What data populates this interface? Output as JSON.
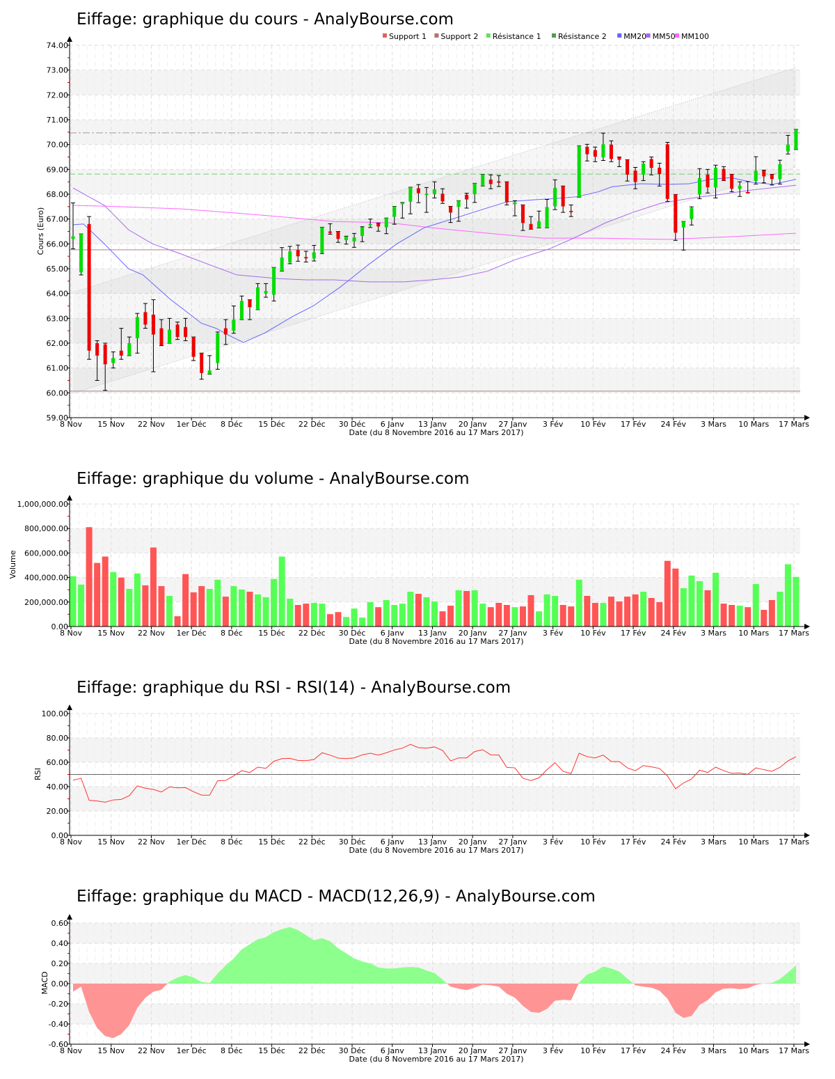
{
  "x_labels": [
    "8 Nov",
    "15 Nov",
    "22 Nov",
    "1er Déc",
    "8 Déc",
    "15 Déc",
    "22 Déc",
    "30 Déc",
    "6 Janv",
    "13 Janv",
    "20 Janv",
    "27 Janv",
    "3 Fév",
    "10 Fév",
    "17 Fév",
    "24 Fév",
    "3 Mars",
    "10 Mars",
    "17 Mars"
  ],
  "x_axis_title": "Date (du 8 Novembre 2016 au 17 Mars 2017)",
  "colors": {
    "up": "#00dd00",
    "down": "#ee0000",
    "vol_up": "#55ff55",
    "vol_down": "#ff5555",
    "rsi": "#ff3333",
    "macd_pos": "#8cff8c",
    "macd_neg": "#ff9494",
    "mm20": "#6666ff",
    "mm50": "#aa66ee",
    "mm100": "#ff66ff",
    "support1": "#e06060",
    "support2": "#b87070",
    "resistance1": "#66dd66",
    "resistance2": "#559955"
  },
  "chart_data": [
    {
      "type": "candlestick",
      "title": "Eiffage: graphique du cours - AnalyBourse.com",
      "ylabel": "Cours (Euro)",
      "ylim": [
        59,
        74
      ],
      "yticks": [
        "74.00",
        "73.00",
        "72.00",
        "71.00",
        "70.00",
        "69.00",
        "68.00",
        "67.00",
        "66.00",
        "65.00",
        "64.00",
        "63.00",
        "62.00",
        "61.00",
        "60.00",
        "59.00"
      ],
      "legend": [
        {
          "label": "Support 1",
          "color": "#e06060"
        },
        {
          "label": "Support 2",
          "color": "#b87070"
        },
        {
          "label": "Résistance 1",
          "color": "#66dd66"
        },
        {
          "label": "Résistance 2",
          "color": "#559955"
        },
        {
          "label": "MM20",
          "color": "#6666ff"
        },
        {
          "label": "MM50",
          "color": "#aa66ee"
        },
        {
          "label": "MM100",
          "color": "#ff66ff"
        }
      ],
      "levels": {
        "support1": 65.76,
        "support2": 60.07,
        "resistance1": 68.81,
        "resistance2": 70.47
      },
      "channel": {
        "upper": [
          [
            0,
            64.05
          ],
          [
            90,
            73.1
          ]
        ],
        "lower": [
          [
            0,
            59.98
          ],
          [
            90,
            69.1
          ]
        ]
      },
      "ohlc": [
        [
          66.2,
          67.65,
          65.8,
          66.3
        ],
        [
          64.85,
          66.4,
          64.75,
          66.4
        ],
        [
          66.8,
          67.1,
          61.35,
          61.7
        ],
        [
          62.0,
          62.1,
          60.5,
          61.5
        ],
        [
          61.95,
          62.0,
          60.1,
          61.15
        ],
        [
          61.2,
          61.65,
          61.0,
          61.4
        ],
        [
          61.7,
          62.6,
          61.35,
          61.5
        ],
        [
          61.5,
          62.25,
          61.5,
          62.0
        ],
        [
          62.2,
          63.2,
          61.6,
          63.05
        ],
        [
          63.25,
          63.6,
          62.6,
          62.75
        ],
        [
          63.15,
          63.75,
          60.85,
          62.35
        ],
        [
          62.6,
          62.95,
          61.9,
          61.9
        ],
        [
          62.0,
          63.0,
          62.0,
          62.55
        ],
        [
          62.75,
          62.85,
          62.15,
          62.25
        ],
        [
          62.65,
          63.0,
          62.1,
          62.25
        ],
        [
          62.25,
          62.25,
          61.3,
          61.45
        ],
        [
          61.6,
          61.6,
          60.55,
          60.8
        ],
        [
          60.75,
          61.5,
          60.75,
          60.9
        ],
        [
          61.2,
          62.45,
          60.95,
          62.4
        ],
        [
          62.6,
          62.95,
          61.95,
          62.35
        ],
        [
          62.5,
          63.5,
          62.4,
          62.95
        ],
        [
          62.95,
          63.9,
          62.95,
          63.7
        ],
        [
          63.75,
          63.75,
          62.95,
          63.45
        ],
        [
          63.35,
          64.4,
          63.35,
          64.25
        ],
        [
          64.0,
          64.4,
          63.85,
          64.1
        ],
        [
          63.95,
          65.05,
          63.7,
          65.05
        ],
        [
          64.9,
          65.85,
          64.9,
          65.45
        ],
        [
          65.25,
          65.9,
          65.2,
          65.7
        ],
        [
          65.75,
          65.95,
          65.3,
          65.5
        ],
        [
          65.47,
          65.7,
          65.27,
          65.42
        ],
        [
          65.41,
          65.94,
          65.31,
          65.66
        ],
        [
          65.64,
          66.67,
          65.61,
          66.67
        ],
        [
          66.5,
          66.81,
          66.39,
          66.44
        ],
        [
          66.5,
          66.5,
          66.06,
          66.2
        ],
        [
          66.15,
          66.31,
          65.99,
          66.3
        ],
        [
          66.1,
          66.42,
          65.86,
          66.26
        ],
        [
          66.32,
          66.69,
          66.09,
          66.67
        ],
        [
          66.75,
          67.0,
          66.66,
          66.8
        ],
        [
          66.84,
          66.84,
          66.51,
          66.7
        ],
        [
          66.67,
          67.04,
          66.41,
          67.04
        ],
        [
          67.09,
          67.51,
          66.79,
          67.51
        ],
        [
          67.6,
          67.67,
          67.04,
          67.67
        ],
        [
          67.7,
          68.28,
          67.21,
          68.28
        ],
        [
          68.24,
          68.39,
          67.66,
          68.04
        ],
        [
          67.98,
          68.27,
          67.27,
          68.02
        ],
        [
          68.0,
          68.5,
          67.85,
          68.2
        ],
        [
          68.02,
          68.22,
          67.63,
          67.71
        ],
        [
          67.51,
          67.51,
          66.86,
          67.26
        ],
        [
          67.49,
          67.74,
          66.91,
          67.74
        ],
        [
          67.98,
          68.04,
          67.44,
          67.79
        ],
        [
          68.0,
          68.44,
          67.67,
          68.44
        ],
        [
          68.33,
          68.8,
          68.33,
          68.8
        ],
        [
          68.59,
          68.78,
          68.22,
          68.41
        ],
        [
          68.52,
          68.75,
          68.31,
          68.48
        ],
        [
          68.5,
          68.5,
          67.57,
          67.67
        ],
        [
          67.6,
          67.74,
          67.13,
          67.67
        ],
        [
          67.57,
          67.57,
          66.54,
          66.84
        ],
        [
          66.8,
          67.1,
          66.59,
          66.59
        ],
        [
          66.64,
          67.32,
          66.64,
          66.91
        ],
        [
          66.65,
          67.79,
          66.65,
          67.48
        ],
        [
          67.51,
          68.58,
          67.38,
          68.26
        ],
        [
          68.33,
          68.33,
          67.27,
          67.51
        ],
        [
          67.33,
          67.57,
          67.1,
          67.29
        ],
        [
          67.88,
          69.95,
          67.88,
          69.95
        ],
        [
          69.91,
          70.01,
          69.34,
          69.61
        ],
        [
          69.78,
          69.9,
          69.31,
          69.51
        ],
        [
          69.49,
          70.46,
          69.36,
          70.01
        ],
        [
          70.0,
          70.15,
          69.31,
          69.42
        ],
        [
          69.5,
          69.5,
          69.11,
          69.39
        ],
        [
          69.39,
          69.39,
          68.53,
          68.79
        ],
        [
          68.95,
          69.08,
          68.22,
          68.49
        ],
        [
          68.79,
          69.31,
          68.55,
          69.23
        ],
        [
          69.42,
          69.5,
          68.78,
          69.06
        ],
        [
          69.07,
          69.25,
          68.33,
          68.81
        ],
        [
          70.01,
          70.09,
          67.71,
          67.81
        ],
        [
          67.99,
          67.99,
          66.14,
          66.45
        ],
        [
          66.66,
          66.9,
          65.75,
          66.9
        ],
        [
          67.0,
          67.49,
          66.76,
          67.44
        ],
        [
          67.99,
          69.03,
          67.82,
          68.65
        ],
        [
          68.79,
          69.0,
          68.05,
          68.28
        ],
        [
          68.27,
          69.17,
          67.85,
          69.07
        ],
        [
          69.02,
          69.11,
          68.55,
          68.55
        ],
        [
          68.8,
          68.8,
          68.1,
          68.22
        ],
        [
          68.22,
          68.5,
          67.91,
          68.34
        ],
        [
          68.09,
          68.51,
          68.07,
          68.07
        ],
        [
          68.53,
          69.51,
          68.41,
          68.95
        ],
        [
          68.95,
          68.97,
          68.46,
          68.72
        ],
        [
          68.8,
          68.8,
          68.37,
          68.61
        ],
        [
          68.61,
          69.37,
          68.41,
          69.21
        ],
        [
          69.72,
          70.37,
          69.62,
          70.0
        ],
        [
          69.8,
          70.61,
          69.8,
          70.61
        ]
      ],
      "mm20": [
        [
          0,
          66.77
        ],
        [
          1.3,
          66.8
        ],
        [
          3.9,
          66.0
        ],
        [
          6.9,
          65.0
        ],
        [
          8.7,
          64.75
        ],
        [
          12.1,
          63.77
        ],
        [
          16.0,
          62.8
        ],
        [
          17.8,
          62.6
        ],
        [
          19.5,
          62.3
        ],
        [
          21.2,
          62.03
        ],
        [
          23.8,
          62.4
        ],
        [
          27.3,
          63.07
        ],
        [
          29.9,
          63.5
        ],
        [
          33.3,
          64.27
        ],
        [
          36.8,
          65.17
        ],
        [
          40.3,
          66.0
        ],
        [
          43.7,
          66.65
        ],
        [
          47.2,
          67.0
        ],
        [
          50.7,
          67.36
        ],
        [
          54.1,
          67.7
        ],
        [
          57.6,
          67.78
        ],
        [
          60.2,
          67.83
        ],
        [
          62.8,
          67.9
        ],
        [
          65.4,
          68.1
        ],
        [
          67.1,
          68.3
        ],
        [
          70.6,
          68.42
        ],
        [
          74.1,
          68.4
        ],
        [
          76.7,
          68.42
        ],
        [
          79.3,
          68.6
        ],
        [
          81.9,
          68.67
        ],
        [
          84.5,
          68.48
        ],
        [
          87.1,
          68.4
        ],
        [
          90,
          68.6
        ]
      ],
      "mm50": [
        [
          0,
          68.25
        ],
        [
          3.9,
          67.55
        ],
        [
          6.9,
          66.57
        ],
        [
          9.9,
          66.0
        ],
        [
          13.4,
          65.6
        ],
        [
          16.9,
          65.17
        ],
        [
          20.4,
          64.75
        ],
        [
          25.6,
          64.6
        ],
        [
          29.0,
          64.55
        ],
        [
          32.5,
          64.55
        ],
        [
          36.8,
          64.47
        ],
        [
          41.2,
          64.47
        ],
        [
          44.6,
          64.55
        ],
        [
          48.1,
          64.66
        ],
        [
          51.6,
          64.9
        ],
        [
          55.0,
          65.36
        ],
        [
          59.3,
          65.8
        ],
        [
          62.8,
          66.3
        ],
        [
          66.3,
          66.85
        ],
        [
          69.7,
          67.27
        ],
        [
          73.2,
          67.64
        ],
        [
          76.7,
          67.83
        ],
        [
          80.1,
          67.97
        ],
        [
          84.5,
          68.17
        ],
        [
          90,
          68.36
        ]
      ],
      "mm100": [
        [
          0,
          67.55
        ],
        [
          3.9,
          67.52
        ],
        [
          8.2,
          67.47
        ],
        [
          13.4,
          67.41
        ],
        [
          20.4,
          67.24
        ],
        [
          27.3,
          67.05
        ],
        [
          32.5,
          66.9
        ],
        [
          39.4,
          66.85
        ],
        [
          44.6,
          66.65
        ],
        [
          51.6,
          66.43
        ],
        [
          58.5,
          66.23
        ],
        [
          65.4,
          66.23
        ],
        [
          70.6,
          66.2
        ],
        [
          74.1,
          66.18
        ],
        [
          77.6,
          66.23
        ],
        [
          82.7,
          66.3
        ],
        [
          90,
          66.43
        ]
      ]
    },
    {
      "type": "bar",
      "title": "Eiffage: graphique du volume - AnalyBourse.com",
      "ylabel": "Volume",
      "ylim": [
        0,
        1000000
      ],
      "yticks": [
        "1,000,000.00",
        "800,000.00",
        "600,000.00",
        "400,000.00",
        "200,000.00",
        "0.00"
      ],
      "values": [
        410000,
        342000,
        811000,
        519000,
        571000,
        445000,
        399000,
        307000,
        433000,
        336000,
        645000,
        330000,
        250000,
        84000,
        428000,
        279000,
        330000,
        307000,
        382000,
        244000,
        330000,
        302000,
        284000,
        262000,
        239000,
        388000,
        571000,
        227000,
        176000,
        187000,
        193000,
        187000,
        101000,
        118000,
        78000,
        147000,
        73000,
        199000,
        158000,
        216000,
        176000,
        187000,
        284000,
        267000,
        239000,
        204000,
        124000,
        170000,
        296000,
        290000,
        296000,
        187000,
        158000,
        193000,
        176000,
        158000,
        164000,
        256000,
        124000,
        262000,
        250000,
        176000,
        164000,
        382000,
        250000,
        193000,
        193000,
        244000,
        204000,
        244000,
        262000,
        284000,
        233000,
        199000,
        536000,
        473000,
        313000,
        416000,
        370000,
        296000,
        439000,
        187000,
        176000,
        170000,
        158000,
        347000,
        136000,
        216000,
        284000,
        508000,
        405000
      ]
    },
    {
      "type": "line",
      "title": "Eiffage: graphique du RSI - RSI(14) - AnalyBourse.com",
      "ylabel": "RSI",
      "ylim": [
        0,
        100
      ],
      "yticks": [
        "100.00",
        "80.00",
        "60.00",
        "40.00",
        "20.00",
        "0.00"
      ],
      "reference": 50,
      "values": [
        45.3,
        46.9,
        28.8,
        28.2,
        27.2,
        29.1,
        29.5,
        32.6,
        40.6,
        38.7,
        37.7,
        35.6,
        39.8,
        39.0,
        39.2,
        35.8,
        33.0,
        33.0,
        44.8,
        45.1,
        48.8,
        53.1,
        51.6,
        56.0,
        55.0,
        60.8,
        63.0,
        63.2,
        61.5,
        61.3,
        62.3,
        67.8,
        65.9,
        63.4,
        63.0,
        63.6,
        66.1,
        67.4,
        65.9,
        67.8,
        70.1,
        71.6,
        74.7,
        72.0,
        71.6,
        72.6,
        69.7,
        61.1,
        63.6,
        63.6,
        68.8,
        70.3,
        66.1,
        65.9,
        55.8,
        55.4,
        46.9,
        45.0,
        47.2,
        53.9,
        59.6,
        52.6,
        50.7,
        67.4,
        64.6,
        63.6,
        65.9,
        60.6,
        60.6,
        55.4,
        53.1,
        57.3,
        56.2,
        54.9,
        48.8,
        38.3,
        43.0,
        46.3,
        53.5,
        51.6,
        56.0,
        53.1,
        50.9,
        51.2,
        50.1,
        55.4,
        53.9,
        52.6,
        55.8,
        61.1,
        64.6
      ]
    },
    {
      "type": "area",
      "title": "Eiffage: graphique du MACD - MACD(12,26,9) - AnalyBourse.com",
      "ylabel": "MACD",
      "ylim": [
        -0.6,
        0.6
      ],
      "yticks": [
        "0.60",
        "0.40",
        "0.20",
        "0.00",
        "-0.20",
        "-0.40",
        "-0.60"
      ],
      "values": [
        -0.08,
        -0.03,
        -0.28,
        -0.44,
        -0.52,
        -0.54,
        -0.5,
        -0.41,
        -0.24,
        -0.14,
        -0.08,
        -0.06,
        0.02,
        0.06,
        0.085,
        0.06,
        0.016,
        0.005,
        0.1,
        0.18,
        0.25,
        0.34,
        0.39,
        0.44,
        0.46,
        0.51,
        0.54,
        0.56,
        0.53,
        0.48,
        0.43,
        0.45,
        0.42,
        0.35,
        0.3,
        0.25,
        0.22,
        0.2,
        0.16,
        0.15,
        0.15,
        0.16,
        0.165,
        0.16,
        0.13,
        0.105,
        0.04,
        -0.03,
        -0.05,
        -0.065,
        -0.04,
        -0.01,
        -0.016,
        -0.03,
        -0.1,
        -0.14,
        -0.22,
        -0.28,
        -0.29,
        -0.25,
        -0.17,
        -0.16,
        -0.165,
        0.01,
        0.09,
        0.12,
        0.17,
        0.15,
        0.12,
        0.05,
        -0.016,
        -0.03,
        -0.04,
        -0.07,
        -0.15,
        -0.29,
        -0.34,
        -0.32,
        -0.21,
        -0.165,
        -0.085,
        -0.05,
        -0.046,
        -0.055,
        -0.046,
        -0.012,
        0.002,
        0.007,
        0.046,
        0.11,
        0.18
      ]
    }
  ]
}
